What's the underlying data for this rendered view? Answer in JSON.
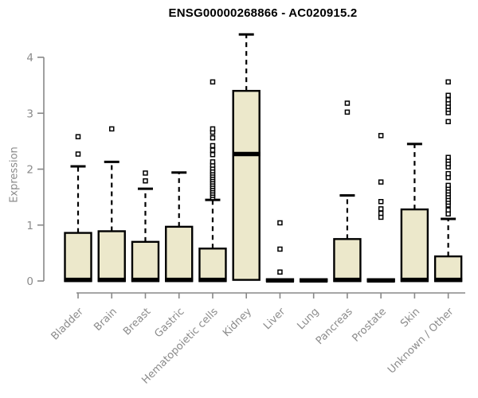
{
  "window": {
    "title": "ENSG00000268866 - AC020915.2"
  },
  "chart_data": {
    "type": "boxplot",
    "title": "ENSG00000268866 - AC020915.2",
    "xlabel": "",
    "ylabel": "Expression",
    "ylim": [
      0,
      4.6
    ],
    "yticks": [
      0,
      1,
      2,
      3,
      4
    ],
    "grid": false,
    "legend": false,
    "colors": {
      "box_fill": "#ece8cb",
      "box_stroke": "#000000",
      "median": "#000000",
      "whisker": "#000000",
      "outlier_stroke": "#000000",
      "outlier_fill": "#ffffff",
      "axis_line": "#888888",
      "tick_label": "#8b8b8b",
      "title": "#000000"
    },
    "categories": [
      "Bladder",
      "Brain",
      "Breast",
      "Gastric",
      "Hematopoietic cells",
      "Kidney",
      "Liver",
      "Lung",
      "Pancreas",
      "Prostate",
      "Skin",
      "Unknown / Other"
    ],
    "boxes": [
      {
        "category": "Bladder",
        "q1": 0,
        "median": 0.02,
        "q3": 0.86,
        "whisker_low": 0,
        "whisker_high": 2.05,
        "outliers": [
          2.27,
          2.58
        ]
      },
      {
        "category": "Brain",
        "q1": 0,
        "median": 0.02,
        "q3": 0.89,
        "whisker_low": 0,
        "whisker_high": 2.13,
        "outliers": [
          2.72
        ]
      },
      {
        "category": "Breast",
        "q1": 0,
        "median": 0.02,
        "q3": 0.7,
        "whisker_low": 0,
        "whisker_high": 1.65,
        "outliers": [
          1.79,
          1.93
        ]
      },
      {
        "category": "Gastric",
        "q1": 0,
        "median": 0.02,
        "q3": 0.97,
        "whisker_low": 0,
        "whisker_high": 1.94,
        "outliers": []
      },
      {
        "category": "Hematopoietic cells",
        "q1": 0,
        "median": 0.02,
        "q3": 0.58,
        "whisker_low": 0,
        "whisker_high": 1.45,
        "outliers": [
          1.49,
          1.53,
          1.57,
          1.61,
          1.65,
          1.69,
          1.73,
          1.77,
          1.81,
          1.85,
          1.89,
          1.93,
          1.97,
          2.02,
          2.07,
          2.13,
          2.26,
          2.34,
          2.42,
          2.56,
          2.66,
          2.72,
          3.56
        ]
      },
      {
        "category": "Kidney",
        "q1": 0.02,
        "median": 2.27,
        "q3": 3.4,
        "whisker_low": 0,
        "whisker_high": 4.41,
        "outliers": []
      },
      {
        "category": "Liver",
        "q1": 0,
        "median": 0.01,
        "q3": 0.03,
        "whisker_low": 0,
        "whisker_high": 0.03,
        "outliers": [
          0.16,
          0.57,
          1.04
        ]
      },
      {
        "category": "Lung",
        "q1": 0,
        "median": 0.01,
        "q3": 0.03,
        "whisker_low": 0,
        "whisker_high": 0.03,
        "outliers": []
      },
      {
        "category": "Pancreas",
        "q1": 0,
        "median": 0.02,
        "q3": 0.75,
        "whisker_low": 0,
        "whisker_high": 1.53,
        "outliers": [
          3.02,
          3.18
        ]
      },
      {
        "category": "Prostate",
        "q1": 0,
        "median": 0.01,
        "q3": 0.03,
        "whisker_low": 0,
        "whisker_high": 0.03,
        "outliers": [
          1.14,
          1.21,
          1.29,
          1.42,
          1.77,
          2.6
        ]
      },
      {
        "category": "Skin",
        "q1": 0,
        "median": 0.02,
        "q3": 1.28,
        "whisker_low": 0,
        "whisker_high": 2.45,
        "outliers": []
      },
      {
        "category": "Unknown / Other",
        "q1": 0,
        "median": 0.02,
        "q3": 0.44,
        "whisker_low": 0,
        "whisker_high": 1.11,
        "outliers": [
          1.2,
          1.27,
          1.36,
          1.41,
          1.46,
          1.51,
          1.56,
          1.61,
          1.66,
          1.71,
          1.85,
          1.92,
          2.04,
          2.1,
          2.16,
          2.21,
          2.85,
          3.01,
          3.07,
          3.12,
          3.18,
          3.24,
          3.32,
          3.56
        ]
      }
    ]
  }
}
